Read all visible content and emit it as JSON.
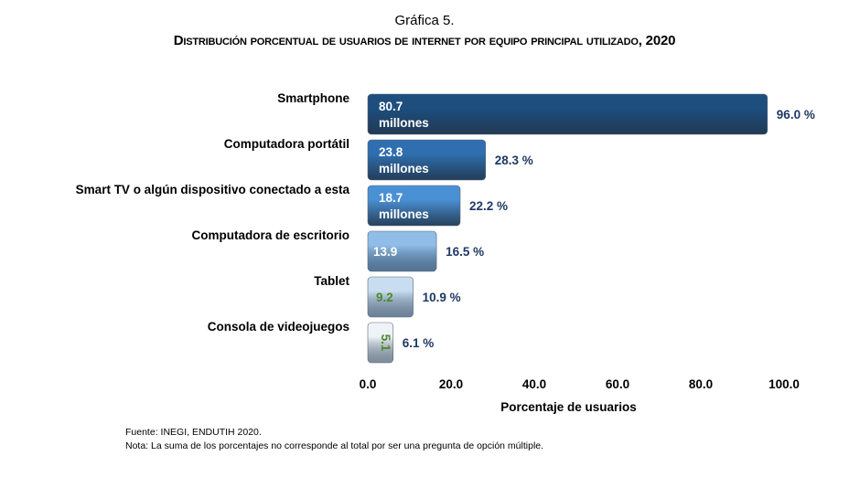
{
  "title": "Gráfica 5.",
  "subtitle": "Distribución porcentual de usuarios de internet por equipo principal utilizado, 2020",
  "footnotes": {
    "source": "Fuente: INEGI, ENDUTIH 2020.",
    "note": "Nota: La suma de los porcentajes no corresponde al total por ser una pregunta de opción múltiple."
  },
  "chart_data": {
    "type": "bar",
    "orientation": "horizontal",
    "categories": [
      "Smartphone",
      "Computadora portátil",
      "Smart TV o algún dispositivo conectado a esta",
      "Computadora de escritorio",
      "Tablet",
      "Consola de videojuegos"
    ],
    "values": [
      96.0,
      28.3,
      22.2,
      16.5,
      10.9,
      6.1
    ],
    "value_labels": [
      "96.0 %",
      "28.3 %",
      "22.2 %",
      "16.5 %",
      "10.9 %",
      "6.1 %"
    ],
    "inner_labels": [
      [
        "80.7",
        "millones"
      ],
      [
        "23.8",
        "millones"
      ],
      [
        "18.7",
        "millones"
      ],
      [
        "13.9"
      ],
      [
        "9.2"
      ],
      [
        "5.1"
      ]
    ],
    "bar_colors": [
      "#1d4e7e",
      "#2f6fb0",
      "#4a90d4",
      "#8fbde8",
      "#c9ddf0",
      "#eef3f8"
    ],
    "inner_label_colors": [
      "#ffffff",
      "#ffffff",
      "#ffffff",
      "#ffffff",
      "#4a8a2a",
      "#4a8a2a"
    ],
    "xlabel": "Porcentaje de usuarios",
    "xlim": [
      0,
      100
    ],
    "xticks": [
      "0.0",
      "20.0",
      "40.0",
      "60.0",
      "80.0",
      "100.0"
    ],
    "grid": false
  }
}
